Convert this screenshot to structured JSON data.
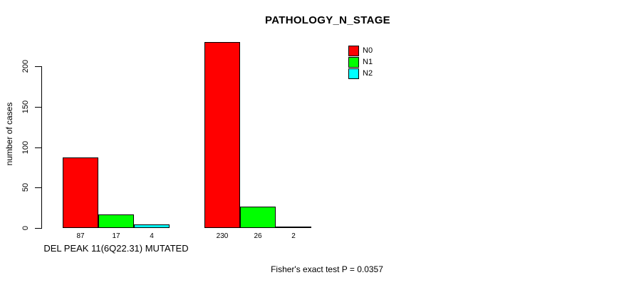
{
  "title": "PATHOLOGY_N_STAGE",
  "y_axis": {
    "label": "number of cases"
  },
  "footnote": "Fisher's exact test P = 0.0357",
  "chart_data": {
    "type": "bar",
    "title": "PATHOLOGY_N_STAGE",
    "xlabel": "",
    "ylabel": "number of cases",
    "ylim": [
      0,
      232
    ],
    "yticks": [
      0,
      50,
      100,
      150,
      200
    ],
    "grid": false,
    "legend_position": "top-right",
    "groups": [
      {
        "label": "DEL PEAK 11(6Q22.31) MUTATED",
        "values": [
          87,
          17,
          4
        ]
      },
      {
        "label": "",
        "values": [
          230,
          26,
          2
        ]
      }
    ],
    "series": [
      {
        "name": "N0",
        "color": "#FF0000",
        "values": [
          87,
          230
        ]
      },
      {
        "name": "N1",
        "color": "#00FF00",
        "values": [
          17,
          26
        ]
      },
      {
        "name": "N2",
        "color": "#00FFFF",
        "values": [
          4,
          2
        ]
      }
    ],
    "annotation": "Fisher's exact test P = 0.0357"
  }
}
